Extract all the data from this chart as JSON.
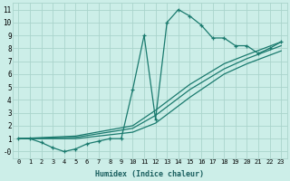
{
  "xlabel": "Humidex (Indice chaleur)",
  "background_color": "#cceee8",
  "grid_color": "#aad4cc",
  "line_color": "#1a7a6e",
  "x_ticks": [
    0,
    1,
    2,
    3,
    4,
    5,
    6,
    7,
    8,
    9,
    10,
    11,
    12,
    13,
    14,
    15,
    16,
    17,
    18,
    19,
    20,
    21,
    22,
    23
  ],
  "y_ticks": [
    0,
    1,
    2,
    3,
    4,
    5,
    6,
    7,
    8,
    9,
    10,
    11
  ],
  "y_tick_labels": [
    "-0",
    "1",
    "2",
    "3",
    "4",
    "5",
    "6",
    "7",
    "8",
    "9",
    "10",
    "11"
  ],
  "xlim": [
    -0.5,
    23.5
  ],
  "ylim": [
    -0.5,
    11.5
  ],
  "series_main": {
    "x": [
      0,
      1,
      2,
      3,
      4,
      5,
      6,
      7,
      8,
      9,
      10,
      11,
      12,
      13,
      14,
      15,
      16,
      17,
      18,
      19,
      20,
      21,
      22,
      23
    ],
    "y": [
      1.0,
      1.0,
      0.7,
      0.3,
      0.0,
      0.2,
      0.6,
      0.8,
      1.0,
      1.0,
      4.8,
      9.0,
      2.5,
      10.0,
      11.0,
      10.5,
      9.8,
      8.8,
      8.8,
      8.2,
      8.2,
      7.6,
      8.0,
      8.5
    ]
  },
  "series_smooth": [
    {
      "x": [
        0,
        5,
        10,
        12,
        15,
        18,
        20,
        23
      ],
      "y": [
        1.0,
        1.2,
        2.0,
        3.2,
        5.2,
        6.8,
        7.5,
        8.5
      ]
    },
    {
      "x": [
        0,
        5,
        10,
        12,
        15,
        18,
        20,
        23
      ],
      "y": [
        1.0,
        1.1,
        1.8,
        2.8,
        4.8,
        6.4,
        7.2,
        8.2
      ]
    },
    {
      "x": [
        0,
        5,
        10,
        12,
        15,
        18,
        20,
        23
      ],
      "y": [
        1.0,
        1.0,
        1.5,
        2.2,
        4.2,
        6.0,
        6.8,
        7.8
      ]
    }
  ]
}
